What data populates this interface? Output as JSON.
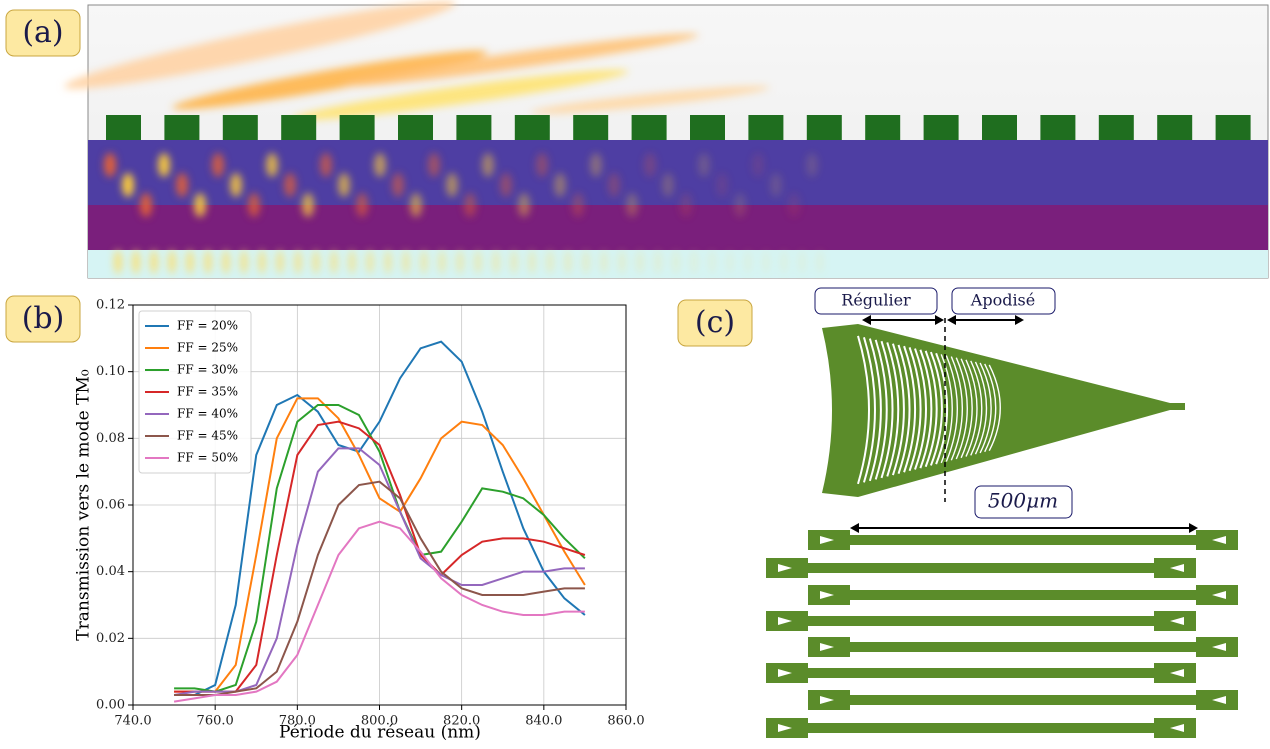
{
  "panels": [
    "(a)",
    "(b)",
    "(c)"
  ],
  "chart_data": {
    "type": "line",
    "x_label": "Période du réseau (nm)",
    "y_label": "Transmission vers le mode TM₀",
    "x": [
      750,
      755,
      760,
      765,
      770,
      775,
      780,
      785,
      790,
      795,
      800,
      805,
      810,
      815,
      820,
      825,
      830,
      835,
      840,
      845,
      850
    ],
    "series": [
      {
        "name": "FF = 20%",
        "color": "#1f77b4",
        "values": [
          0.003,
          0.003,
          0.006,
          0.03,
          0.075,
          0.09,
          0.093,
          0.088,
          0.078,
          0.076,
          0.085,
          0.098,
          0.107,
          0.109,
          0.103,
          0.088,
          0.07,
          0.053,
          0.04,
          0.032,
          0.027
        ]
      },
      {
        "name": "FF = 25%",
        "color": "#ff7f0e",
        "values": [
          0.004,
          0.004,
          0.004,
          0.012,
          0.045,
          0.08,
          0.092,
          0.092,
          0.086,
          0.075,
          0.062,
          0.058,
          0.068,
          0.08,
          0.085,
          0.084,
          0.078,
          0.068,
          0.057,
          0.046,
          0.036
        ]
      },
      {
        "name": "FF = 30%",
        "color": "#2ca02c",
        "values": [
          0.005,
          0.005,
          0.004,
          0.006,
          0.025,
          0.065,
          0.085,
          0.09,
          0.09,
          0.087,
          0.076,
          0.058,
          0.045,
          0.046,
          0.055,
          0.065,
          0.064,
          0.062,
          0.057,
          0.05,
          0.044
        ]
      },
      {
        "name": "FF = 35%",
        "color": "#d62728",
        "values": [
          0.004,
          0.004,
          0.004,
          0.004,
          0.012,
          0.045,
          0.075,
          0.084,
          0.085,
          0.083,
          0.078,
          0.063,
          0.045,
          0.039,
          0.045,
          0.049,
          0.05,
          0.05,
          0.049,
          0.047,
          0.045
        ]
      },
      {
        "name": "FF = 40%",
        "color": "#9467bd",
        "values": [
          0.003,
          0.004,
          0.004,
          0.004,
          0.006,
          0.02,
          0.048,
          0.07,
          0.077,
          0.077,
          0.072,
          0.058,
          0.044,
          0.039,
          0.036,
          0.036,
          0.038,
          0.04,
          0.04,
          0.041,
          0.041
        ]
      },
      {
        "name": "FF = 45%",
        "color": "#8c564b",
        "values": [
          0.003,
          0.003,
          0.003,
          0.004,
          0.005,
          0.01,
          0.025,
          0.045,
          0.06,
          0.066,
          0.067,
          0.062,
          0.05,
          0.04,
          0.035,
          0.033,
          0.033,
          0.033,
          0.034,
          0.035,
          0.035
        ]
      },
      {
        "name": "FF = 50%",
        "color": "#e377c2",
        "values": [
          0.001,
          0.002,
          0.003,
          0.003,
          0.004,
          0.007,
          0.015,
          0.03,
          0.045,
          0.053,
          0.055,
          0.053,
          0.046,
          0.038,
          0.033,
          0.03,
          0.028,
          0.027,
          0.027,
          0.028,
          0.028
        ]
      }
    ],
    "xlim": [
      740,
      860
    ],
    "xticks": [
      {
        "value": 740,
        "label": "740.0"
      },
      {
        "value": 760,
        "label": "760.0"
      },
      {
        "value": 780,
        "label": "780.0"
      },
      {
        "value": 800,
        "label": "800.0"
      },
      {
        "value": 820,
        "label": "820.0"
      },
      {
        "value": 840,
        "label": "840.0"
      },
      {
        "value": 860,
        "label": "860.0"
      }
    ],
    "ylim": [
      0,
      0.12
    ],
    "yticks": [
      {
        "value": 0,
        "label": "0.00"
      },
      {
        "value": 0.02,
        "label": "0.02"
      },
      {
        "value": 0.04,
        "label": "0.04"
      },
      {
        "value": 0.06,
        "label": "0.06"
      },
      {
        "value": 0.08,
        "label": "0.08"
      },
      {
        "value": 0.1,
        "label": "0.10"
      },
      {
        "value": 0.12,
        "label": "0.12"
      }
    ],
    "grid": true,
    "legend": "upper left"
  },
  "diagram": {
    "labels": [
      "Régulier",
      "Apodisé",
      "500μm"
    ]
  }
}
